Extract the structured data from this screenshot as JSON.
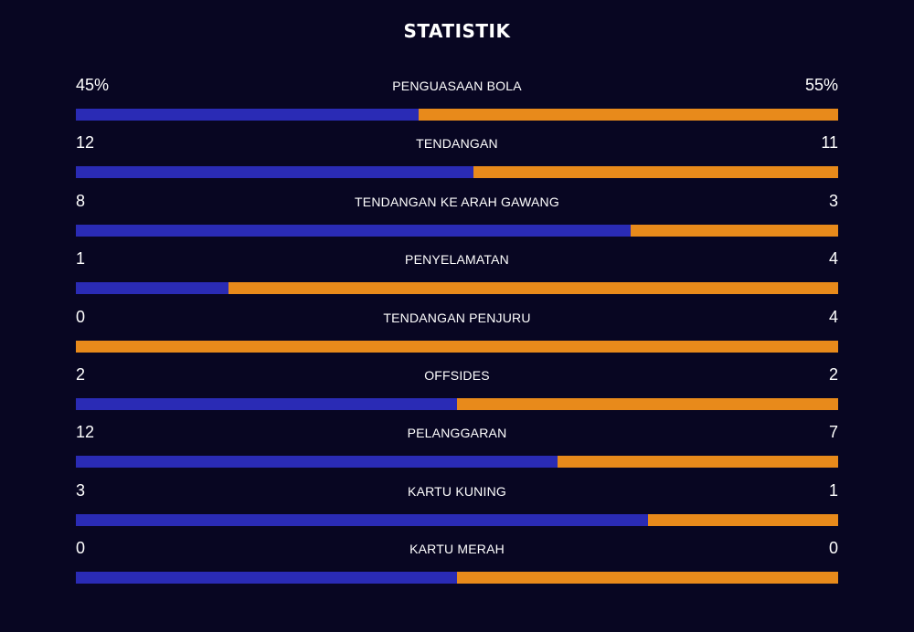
{
  "colors": {
    "background": "#080622",
    "home": "#2a2bb5",
    "away": "#e88a1b",
    "text": "#ffffff"
  },
  "title": "STATISTIK",
  "stats": [
    {
      "label": "PENGUASAAN BOLA",
      "home": "45%",
      "away": "55%",
      "home_value": 45,
      "away_value": 55
    },
    {
      "label": "TENDANGAN",
      "home": "12",
      "away": "11",
      "home_value": 12,
      "away_value": 11
    },
    {
      "label": "TENDANGAN KE ARAH GAWANG",
      "home": "8",
      "away": "3",
      "home_value": 8,
      "away_value": 3
    },
    {
      "label": "PENYELAMATAN",
      "home": "1",
      "away": "4",
      "home_value": 1,
      "away_value": 4
    },
    {
      "label": "TENDANGAN PENJURU",
      "home": "0",
      "away": "4",
      "home_value": 0,
      "away_value": 4
    },
    {
      "label": "OFFSIDES",
      "home": "2",
      "away": "2",
      "home_value": 2,
      "away_value": 2
    },
    {
      "label": "PELANGGARAN",
      "home": "12",
      "away": "7",
      "home_value": 12,
      "away_value": 7
    },
    {
      "label": "KARTU KUNING",
      "home": "3",
      "away": "1",
      "home_value": 3,
      "away_value": 1
    },
    {
      "label": "KARTU MERAH",
      "home": "0",
      "away": "0",
      "home_value": 0,
      "away_value": 0
    }
  ]
}
